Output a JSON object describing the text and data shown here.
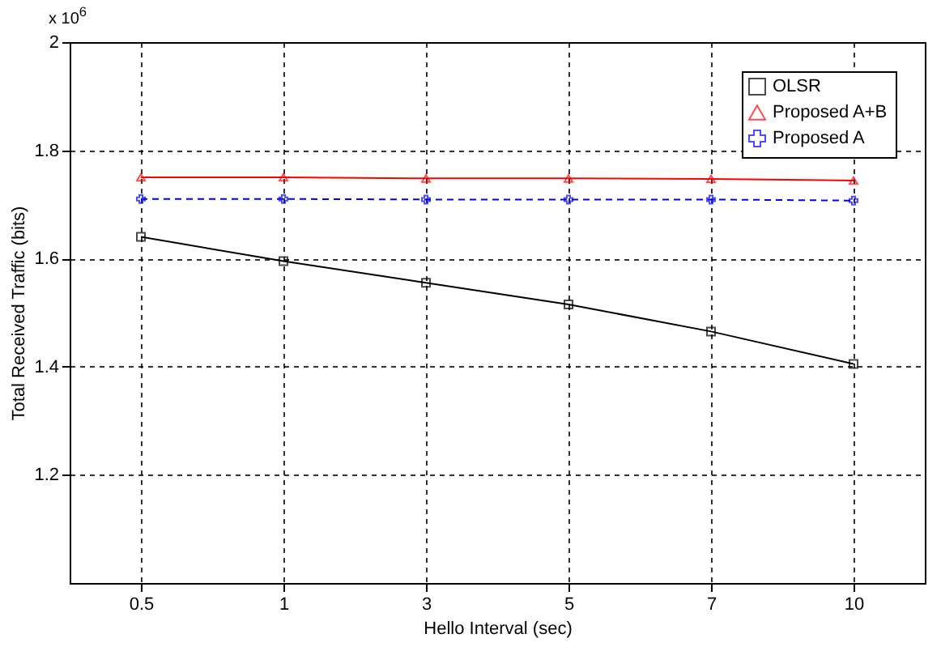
{
  "chart_data": {
    "type": "line",
    "xlabel": "Hello Interval (sec)",
    "ylabel": "Total Received Traffic (bits)",
    "annotations": [
      "x 10$^{6}$"
    ],
    "categories": [
      "0.5",
      "1",
      "3",
      "5",
      "7",
      "10"
    ],
    "series": [
      {
        "name": "OLSR",
        "color": "#000000",
        "marker": "square",
        "line_style": "solid",
        "values": [
          1.64,
          1.595,
          1.555,
          1.515,
          1.465,
          1.405
        ]
      },
      {
        "name": "Proposed A+B",
        "color": "#ff0000",
        "marker": "triangle",
        "line_style": "solid",
        "values": [
          1.75,
          1.75,
          1.748,
          1.748,
          1.747,
          1.744
        ]
      },
      {
        "name": "Proposed A",
        "color": "#0000ff",
        "marker": "cross",
        "line_style": "dashed",
        "values": [
          1.71,
          1.71,
          1.709,
          1.709,
          1.709,
          1.707
        ]
      }
    ],
    "ylim": [
      1,
      2
    ],
    "yticks": [
      1.2,
      1.4,
      1.6,
      1.8,
      {
        "value": 2,
        "label": "2"
      }
    ],
    "grid": true,
    "legend": "top right"
  }
}
